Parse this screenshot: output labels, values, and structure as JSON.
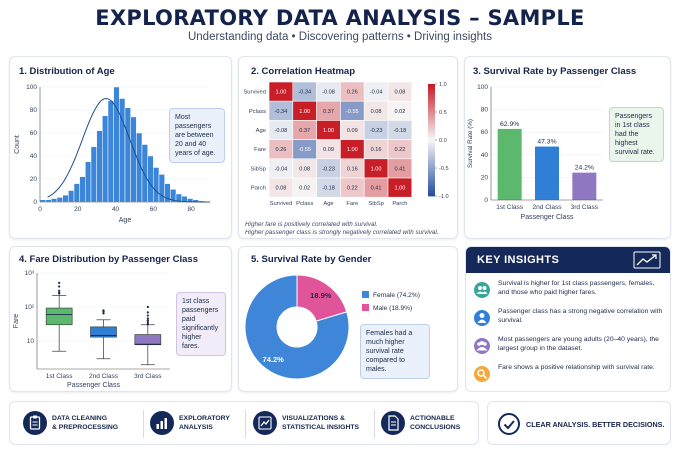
{
  "header": {
    "title": "EXPLORATORY DATA ANALYSIS – SAMPLE",
    "subtitle": "Understanding data • Discovering patterns • Driving insights"
  },
  "colors": {
    "navy": "#14285a",
    "blue": "#2f7fd6",
    "green": "#5cb86d",
    "purple": "#8f77c2",
    "pink": "#e0559a",
    "teal": "#3aa59a"
  },
  "chart_data": [
    {
      "type": "bar",
      "panel_title": "1. Distribution of Age",
      "xlabel": "Age",
      "ylabel": "Count",
      "xlim": [
        0,
        90
      ],
      "ylim": [
        0,
        100
      ],
      "x_ticks": [
        0,
        20,
        40,
        60,
        80
      ],
      "y_ticks": [
        0,
        20,
        40,
        60,
        80,
        100
      ],
      "bin_width": 3,
      "bin_start": 0,
      "values": [
        2,
        2,
        3,
        4,
        6,
        10,
        16,
        22,
        35,
        48,
        62,
        75,
        88,
        100,
        90,
        82,
        74,
        60,
        50,
        40,
        30,
        24,
        16,
        11,
        7,
        5,
        3,
        2,
        1
      ],
      "curve_peak": 90,
      "curve_mean": 35,
      "curve_sd": 12.5,
      "note": "Most passengers are between 20 and 40 years of age."
    },
    {
      "type": "heatmap",
      "panel_title": "2. Correlation Heatmap",
      "rows": [
        "Survived",
        "Pclass",
        "Age",
        "Fare",
        "SibSp",
        "Parch"
      ],
      "cols": [
        "Survived",
        "Pclass",
        "Age",
        "Fare",
        "SibSp",
        "Parch"
      ],
      "values": [
        [
          1.0,
          -0.34,
          -0.08,
          0.26,
          -0.04,
          0.08
        ],
        [
          -0.34,
          1.0,
          0.37,
          -0.55,
          0.08,
          0.02
        ],
        [
          -0.08,
          0.37,
          1.0,
          0.09,
          -0.23,
          -0.18
        ],
        [
          0.26,
          -0.55,
          0.09,
          1.0,
          0.16,
          0.22
        ],
        [
          -0.04,
          0.08,
          -0.23,
          0.16,
          1.0,
          0.41
        ],
        [
          0.08,
          0.02,
          -0.18,
          0.22,
          0.41,
          1.0
        ]
      ],
      "labels": [
        [
          "1.00",
          "-0.34",
          "-0.08",
          "0.26",
          "-0.04",
          "0.08"
        ],
        [
          "-0.34",
          "1.00",
          "0.37",
          "-0.55",
          "0.08",
          "0.02"
        ],
        [
          "-0.08",
          "0.37",
          "1.00",
          "0.09",
          "-0.23",
          "-0.18"
        ],
        [
          "0.26",
          "-0.55",
          "0.09",
          "1.00",
          "0.16",
          "0.22"
        ],
        [
          "-0.04",
          "0.08",
          "-0.23",
          "0.16",
          "1.00",
          "0.41"
        ],
        [
          "0.08",
          "0.02",
          "-0.18",
          "0.22",
          "0.41",
          "1.00"
        ]
      ],
      "colorbar_ticks": [
        1.0,
        0.5,
        0.0,
        -0.5,
        -1.0
      ],
      "colorbar_labels": [
        "1.0",
        "0.5",
        "0.0",
        "-0.5",
        "-1.0"
      ],
      "vmin": -1,
      "vmax": 1,
      "caption_1": "Higher fare is positively correlated with survival.",
      "caption_2": "Higher passenger class is strongly negatively correlated with survival."
    },
    {
      "type": "bar",
      "panel_title": "3. Survival Rate by Passenger Class",
      "categories": [
        "1st Class",
        "2nd Class",
        "3rd Class"
      ],
      "values": [
        62.9,
        47.3,
        24.2
      ],
      "data_labels": [
        "62.9%",
        "47.3%",
        "24.2%"
      ],
      "bar_colors": [
        "#5cb86d",
        "#2f7fd6",
        "#8f77c2"
      ],
      "xlabel": "Passenger Class",
      "ylabel": "Survival Rate (%)",
      "ylim": [
        0,
        100
      ],
      "y_ticks": [
        0,
        20,
        40,
        60,
        80,
        100
      ],
      "note": "Passengers in 1st class had the highest survival rate."
    },
    {
      "type": "box",
      "panel_title": "4. Fare Distribution by Passenger Class",
      "categories": [
        "1st Class",
        "2nd Class",
        "3rd Class"
      ],
      "xlabel": "Passenger Class",
      "ylabel": "Fare",
      "y_scale": "log",
      "ylim": [
        1.5,
        1000
      ],
      "y_ticks": [
        1000,
        100,
        10
      ],
      "y_tick_labels": [
        "10³",
        "10²",
        "10"
      ],
      "box_colors": [
        "#5cb86d",
        "#2f7fd6",
        "#8f77c2"
      ],
      "stats": [
        {
          "whisker_low": 5,
          "q1": 30,
          "median": 60,
          "q3": 93,
          "whisker_high": 220,
          "outliers": [
            250,
            260,
            263,
            300,
            400,
            512
          ]
        },
        {
          "whisker_low": 3,
          "q1": 13,
          "median": 14.5,
          "q3": 26,
          "whisker_high": 42,
          "outliers": [
            65,
            73,
            73.5,
            80
          ]
        },
        {
          "whisker_low": 2,
          "q1": 7.75,
          "median": 8.05,
          "q3": 15.5,
          "whisker_high": 30,
          "outliers": [
            31,
            34,
            39,
            40,
            46,
            56,
            69.5,
            100
          ]
        }
      ],
      "note": "1st class passengers paid significantly higher fares."
    },
    {
      "type": "pie",
      "panel_title": "5. Survival Rate by Gender",
      "labels": [
        "Female (74.2%)",
        "Male (18.9%)"
      ],
      "slice_labels": [
        "74.2%",
        "18.9%"
      ],
      "values": [
        74.2,
        18.9
      ],
      "colors": [
        "#3f86d8",
        "#e0559a"
      ],
      "note": "Females had a much higher survival rate compared to males."
    }
  ],
  "insights": {
    "title": "KEY INSIGHTS",
    "items": [
      {
        "text": "Survival is higher for 1st class passengers, females, and those who paid higher fares.",
        "icon": "users-icon",
        "color": "#3aa59a"
      },
      {
        "text": "Passenger class has a strong negative correlation with survival.",
        "icon": "user-icon",
        "color": "#2f7fd6"
      },
      {
        "text": "Most passengers are young adults (20–40 years), the largest group in the dataset.",
        "icon": "people-icon",
        "color": "#8f77c2"
      },
      {
        "text": "Fare shows a positive relationship with survival rate.",
        "icon": "search-icon",
        "color": "#f0a93a"
      }
    ]
  },
  "footer": {
    "items": [
      {
        "line1": "DATA CLEANING",
        "line2": "& PREPROCESSING",
        "icon": "clipboard-icon"
      },
      {
        "line1": "EXPLORATORY",
        "line2": "ANALYSIS",
        "icon": "bar-chart-icon"
      },
      {
        "line1": "VISUALIZATIONS &",
        "line2": "STATISTICAL INSIGHTS",
        "icon": "line-chart-icon"
      },
      {
        "line1": "ACTIONABLE",
        "line2": "CONCLUSIONS",
        "icon": "document-icon"
      }
    ],
    "cta": "CLEAR ANALYSIS. BETTER DECISIONS."
  }
}
